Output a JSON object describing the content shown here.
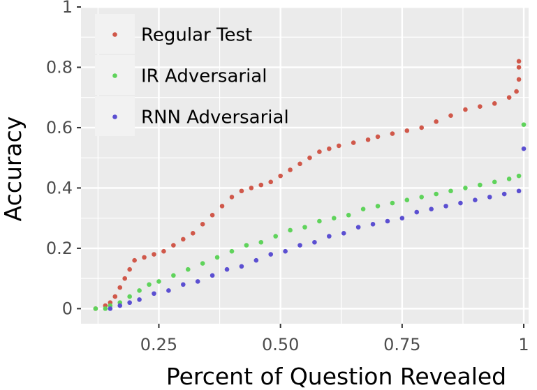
{
  "chart_data": {
    "type": "scatter",
    "xlabel": "Percent of Question Revealed",
    "ylabel": "Accuracy",
    "xlim": [
      0.09,
      1.01
    ],
    "ylim": [
      -0.05,
      1.0
    ],
    "x_ticks": [
      0.25,
      0.5,
      0.75,
      1
    ],
    "x_tick_labels": [
      "0.25",
      "0.50",
      "0.75",
      "1"
    ],
    "y_ticks": [
      0,
      0.2,
      0.4,
      0.6,
      0.8,
      1
    ],
    "y_tick_labels": [
      "0",
      "0.2",
      "0.4",
      "0.6",
      "0.8",
      "1"
    ],
    "grid": true,
    "legend_position": "top-left",
    "colors": {
      "panel": "#ebebeb",
      "grid": "#ffffff",
      "legend_key": "#f2f2f2"
    },
    "series": [
      {
        "name": "Regular Test",
        "color": "#d0584a",
        "points": [
          [
            0.12,
            0.0
          ],
          [
            0.14,
            0.01
          ],
          [
            0.15,
            0.02
          ],
          [
            0.16,
            0.04
          ],
          [
            0.17,
            0.07
          ],
          [
            0.18,
            0.1
          ],
          [
            0.19,
            0.13
          ],
          [
            0.2,
            0.16
          ],
          [
            0.22,
            0.17
          ],
          [
            0.24,
            0.18
          ],
          [
            0.26,
            0.19
          ],
          [
            0.28,
            0.21
          ],
          [
            0.3,
            0.23
          ],
          [
            0.32,
            0.25
          ],
          [
            0.34,
            0.28
          ],
          [
            0.36,
            0.31
          ],
          [
            0.38,
            0.34
          ],
          [
            0.4,
            0.37
          ],
          [
            0.42,
            0.39
          ],
          [
            0.44,
            0.4
          ],
          [
            0.46,
            0.41
          ],
          [
            0.48,
            0.42
          ],
          [
            0.5,
            0.44
          ],
          [
            0.52,
            0.46
          ],
          [
            0.54,
            0.48
          ],
          [
            0.56,
            0.5
          ],
          [
            0.58,
            0.52
          ],
          [
            0.6,
            0.53
          ],
          [
            0.62,
            0.54
          ],
          [
            0.65,
            0.55
          ],
          [
            0.68,
            0.56
          ],
          [
            0.7,
            0.57
          ],
          [
            0.73,
            0.58
          ],
          [
            0.76,
            0.59
          ],
          [
            0.79,
            0.6
          ],
          [
            0.82,
            0.62
          ],
          [
            0.85,
            0.64
          ],
          [
            0.88,
            0.66
          ],
          [
            0.91,
            0.67
          ],
          [
            0.94,
            0.68
          ],
          [
            0.97,
            0.7
          ],
          [
            0.985,
            0.72
          ],
          [
            0.99,
            0.76
          ],
          [
            0.99,
            0.8
          ],
          [
            0.99,
            0.82
          ]
        ]
      },
      {
        "name": "IR Adversarial",
        "color": "#5fd35b",
        "points": [
          [
            0.12,
            0.0
          ],
          [
            0.14,
            0.0
          ],
          [
            0.15,
            0.01
          ],
          [
            0.17,
            0.02
          ],
          [
            0.19,
            0.04
          ],
          [
            0.21,
            0.06
          ],
          [
            0.23,
            0.08
          ],
          [
            0.25,
            0.09
          ],
          [
            0.28,
            0.11
          ],
          [
            0.31,
            0.13
          ],
          [
            0.34,
            0.15
          ],
          [
            0.37,
            0.17
          ],
          [
            0.4,
            0.19
          ],
          [
            0.43,
            0.21
          ],
          [
            0.46,
            0.22
          ],
          [
            0.49,
            0.24
          ],
          [
            0.52,
            0.26
          ],
          [
            0.55,
            0.27
          ],
          [
            0.58,
            0.29
          ],
          [
            0.61,
            0.3
          ],
          [
            0.64,
            0.31
          ],
          [
            0.67,
            0.33
          ],
          [
            0.7,
            0.34
          ],
          [
            0.73,
            0.35
          ],
          [
            0.76,
            0.36
          ],
          [
            0.79,
            0.37
          ],
          [
            0.82,
            0.38
          ],
          [
            0.85,
            0.39
          ],
          [
            0.88,
            0.4
          ],
          [
            0.91,
            0.41
          ],
          [
            0.94,
            0.42
          ],
          [
            0.97,
            0.43
          ],
          [
            0.99,
            0.44
          ],
          [
            1.0,
            0.61
          ]
        ]
      },
      {
        "name": "RNN Adversarial",
        "color": "#5b4fd1",
        "points": [
          [
            0.15,
            0.0
          ],
          [
            0.17,
            0.01
          ],
          [
            0.19,
            0.02
          ],
          [
            0.21,
            0.03
          ],
          [
            0.24,
            0.05
          ],
          [
            0.27,
            0.06
          ],
          [
            0.3,
            0.08
          ],
          [
            0.33,
            0.09
          ],
          [
            0.36,
            0.11
          ],
          [
            0.39,
            0.13
          ],
          [
            0.42,
            0.14
          ],
          [
            0.45,
            0.16
          ],
          [
            0.48,
            0.18
          ],
          [
            0.51,
            0.19
          ],
          [
            0.54,
            0.21
          ],
          [
            0.57,
            0.22
          ],
          [
            0.6,
            0.24
          ],
          [
            0.63,
            0.25
          ],
          [
            0.66,
            0.27
          ],
          [
            0.69,
            0.28
          ],
          [
            0.72,
            0.29
          ],
          [
            0.75,
            0.3
          ],
          [
            0.78,
            0.32
          ],
          [
            0.81,
            0.33
          ],
          [
            0.84,
            0.34
          ],
          [
            0.87,
            0.35
          ],
          [
            0.9,
            0.36
          ],
          [
            0.93,
            0.37
          ],
          [
            0.96,
            0.38
          ],
          [
            0.99,
            0.39
          ],
          [
            1.0,
            0.53
          ]
        ]
      }
    ]
  }
}
